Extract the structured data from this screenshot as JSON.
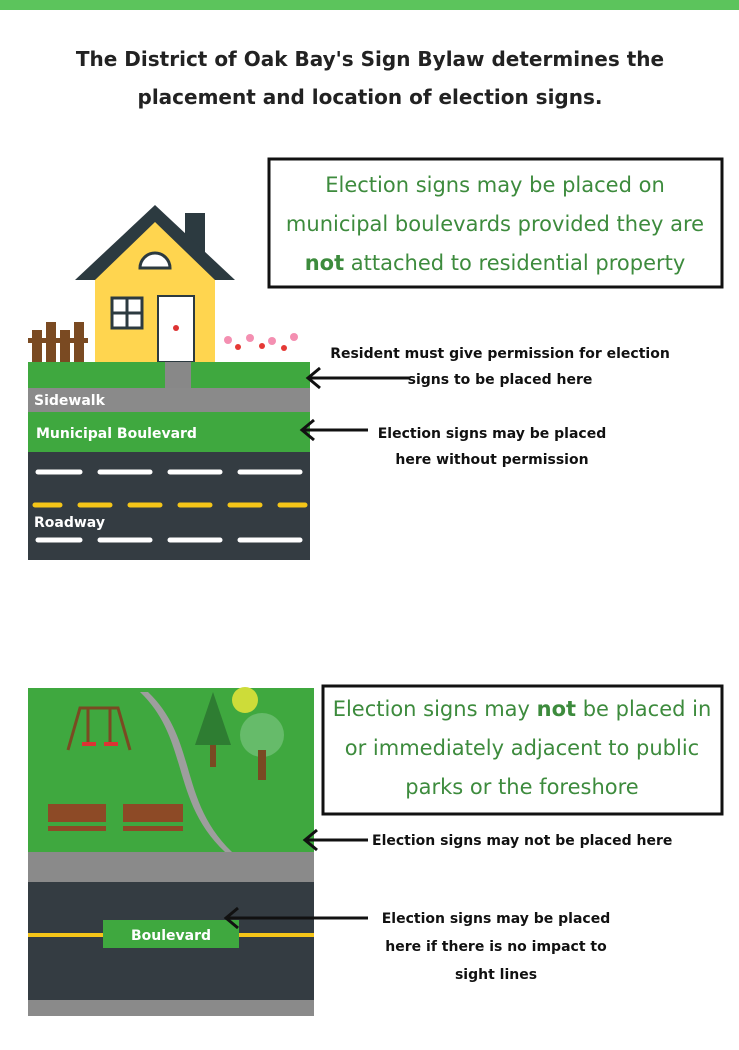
{
  "header": {
    "title_lines": [
      "The District of Oak Bay's Sign Bylaw determines the",
      "placement and location of election signs."
    ]
  },
  "section1": {
    "box_lines": [
      [
        "Election signs may be placed on"
      ],
      [
        "municipal boulevards provided they are"
      ],
      [
        "not",
        " attached to residential property"
      ]
    ],
    "labels": {
      "sidewalk": "Sidewalk",
      "boulevard": "Municipal Boulevard",
      "roadway": "Roadway"
    },
    "callout1": [
      "Resident must give permission for election",
      "signs to be placed here"
    ],
    "callout2": [
      "Election signs may be placed",
      "here without permission"
    ]
  },
  "section2": {
    "box_lines": [
      [
        "Election signs may ",
        "not",
        " be placed in"
      ],
      [
        "or immediately adjacent to public"
      ],
      [
        "parks or the foreshore"
      ]
    ],
    "labels": {
      "boulevard": "Boulevard"
    },
    "callout1": [
      "Election signs may not be placed here"
    ],
    "callout2": [
      "Election signs may be placed",
      "here if there is no impact to",
      "sight lines"
    ]
  }
}
